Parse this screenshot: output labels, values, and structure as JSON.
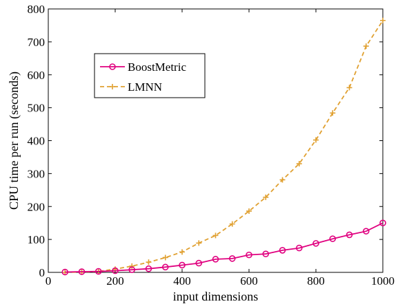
{
  "chart_data": {
    "type": "line",
    "title": "",
    "xlabel": "input dimensions",
    "ylabel": "CPU time per run (seconds)",
    "xlim": [
      0,
      1000
    ],
    "ylim": [
      0,
      800
    ],
    "xticks": [
      0,
      200,
      400,
      600,
      800,
      1000
    ],
    "yticks": [
      0,
      100,
      200,
      300,
      400,
      500,
      600,
      700,
      800
    ],
    "x": [
      50,
      100,
      150,
      200,
      250,
      300,
      350,
      400,
      450,
      500,
      550,
      600,
      650,
      700,
      750,
      800,
      850,
      900,
      950,
      1000
    ],
    "legend_position": "upper-left",
    "grid": false,
    "series": [
      {
        "name": "BoostMetric",
        "color": "#e0007f",
        "line_style": "solid",
        "marker": "circle",
        "values": [
          1,
          2,
          3,
          5,
          8,
          11,
          16,
          22,
          28,
          40,
          42,
          53,
          56,
          67,
          74,
          88,
          102,
          114,
          125,
          150
        ]
      },
      {
        "name": "LMNN",
        "color": "#e0a030",
        "line_style": "dashed",
        "marker": "plus",
        "values": [
          0,
          1,
          3,
          10,
          19,
          31,
          45,
          62,
          89,
          112,
          147,
          186,
          228,
          281,
          330,
          402,
          484,
          561,
          687,
          765
        ]
      }
    ]
  }
}
